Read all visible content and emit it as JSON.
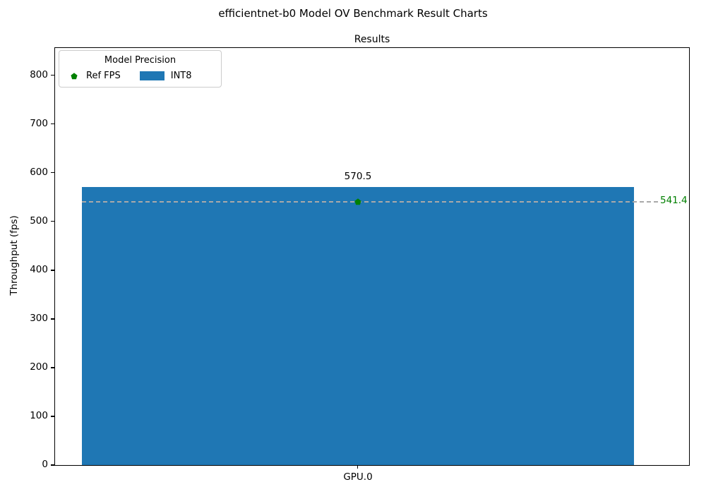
{
  "chart_data": {
    "type": "bar",
    "title": "efficientnet-b0 Model OV Benchmark Result Charts",
    "axes_title": "Results",
    "xlabel": "",
    "ylabel": "Throughput (fps)",
    "categories": [
      "GPU.0"
    ],
    "series": [
      {
        "name": "INT8",
        "values": [
          570.5
        ],
        "color": "#1f77b4"
      }
    ],
    "bar_labels": [
      "570.5"
    ],
    "ref_line": {
      "name": "Ref FPS",
      "value": 541.4,
      "label": "541.4",
      "marker": "pentagon",
      "marker_color": "#008000",
      "label_color": "#008000",
      "line_color": "#a9a9a9",
      "line_style": "dashed"
    },
    "ylim": [
      0,
      856
    ],
    "yticks": [
      0,
      100,
      200,
      300,
      400,
      500,
      600,
      700,
      800
    ],
    "grid": false,
    "legend": {
      "title": "Model Precision",
      "position": "upper left",
      "entries": [
        {
          "label": "Ref FPS",
          "marker": "pentagon",
          "color": "#008000"
        },
        {
          "label": "INT8",
          "marker": "patch",
          "color": "#1f77b4"
        }
      ]
    }
  }
}
